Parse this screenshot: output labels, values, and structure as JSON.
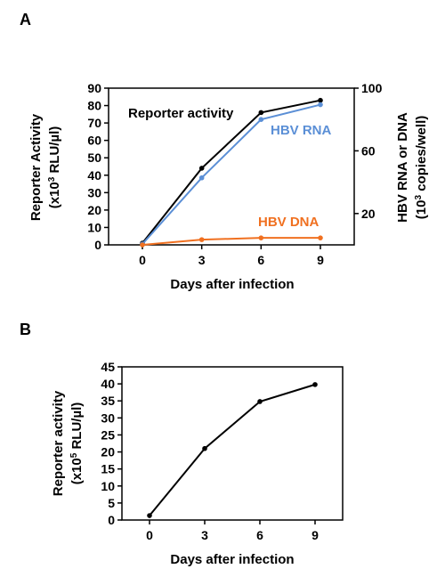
{
  "panels": [
    "A",
    "B"
  ],
  "chart_data": [
    {
      "type": "line",
      "x": [
        0,
        3,
        6,
        9
      ],
      "xlabel": "Days after infection",
      "ylabel": [
        "Reporter Activity",
        "(x10",
        "3",
        " RLU/µl)"
      ],
      "ylim": [
        0,
        90
      ],
      "yticks": [
        0,
        10,
        20,
        30,
        40,
        50,
        60,
        70,
        80,
        90
      ],
      "y2label": [
        "HBV RNA or DNA",
        "(10",
        "3",
        " copies/well)"
      ],
      "y2ticks": [
        20,
        60,
        100
      ],
      "y2lim": [
        0,
        100
      ],
      "series": [
        {
          "name": "Reporter activity",
          "axis": "left",
          "color": "#000000",
          "values": [
            1,
            44,
            76,
            83
          ]
        },
        {
          "name": "HBV RNA",
          "axis": "left",
          "color": "#5b8fd6",
          "values": [
            0.5,
            38.5,
            72,
            80.5
          ]
        },
        {
          "name": "HBV DNA",
          "axis": "left",
          "color": "#f07020",
          "values": [
            0,
            3,
            4,
            4
          ]
        }
      ]
    },
    {
      "type": "line",
      "x": [
        0,
        3,
        6,
        9
      ],
      "xlabel": "Days after infection",
      "ylabel": [
        "Reporter activity",
        "(x10",
        "5",
        " RLU/µl)"
      ],
      "ylim": [
        0,
        45
      ],
      "yticks": [
        0,
        5,
        10,
        15,
        20,
        25,
        30,
        35,
        40,
        45
      ],
      "series": [
        {
          "color": "#000000",
          "values": [
            1.3,
            21,
            34.8,
            39.8
          ]
        }
      ]
    }
  ]
}
